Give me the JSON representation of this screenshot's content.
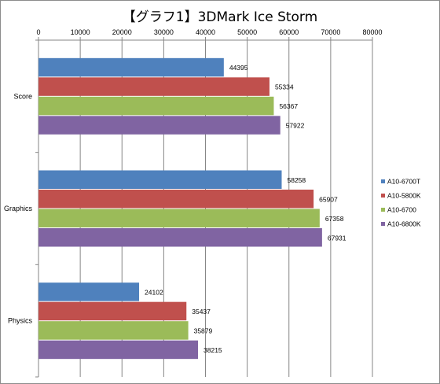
{
  "chart_data": {
    "type": "bar",
    "orientation": "horizontal",
    "title": "【グラフ1】3DMark Ice Storm",
    "categories": [
      "Score",
      "Graphics",
      "Physics"
    ],
    "series": [
      {
        "name": "A10-6700T",
        "color": "#4f81bd",
        "values": [
          44395,
          58258,
          24102
        ]
      },
      {
        "name": "A10-5800K",
        "color": "#c0504d",
        "values": [
          55334,
          65907,
          35437
        ]
      },
      {
        "name": "A10-6700",
        "color": "#9bbb59",
        "values": [
          56367,
          67358,
          35879
        ]
      },
      {
        "name": "A10-6800K",
        "color": "#8064a2",
        "values": [
          57922,
          67931,
          38215
        ]
      }
    ],
    "xlim": [
      0,
      80000
    ],
    "xticks": [
      0,
      10000,
      20000,
      30000,
      40000,
      50000,
      60000,
      70000,
      80000
    ],
    "xaxis_position": "top",
    "grid": true,
    "legend_position": "right"
  }
}
